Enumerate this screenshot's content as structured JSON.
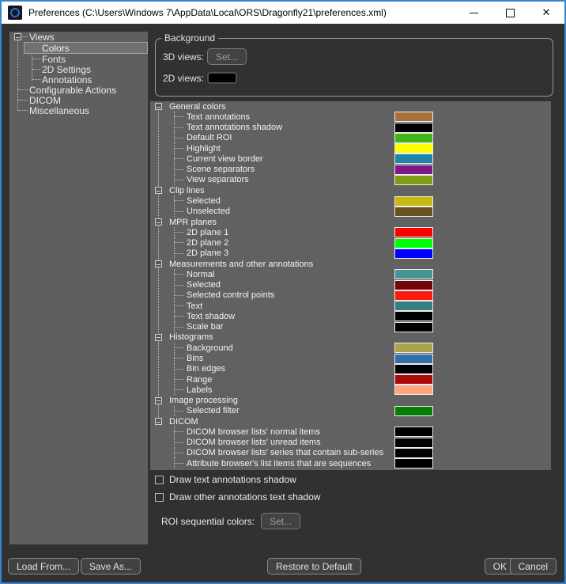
{
  "window": {
    "title": "Preferences (C:\\Users\\Windows 7\\AppData\\Local\\ORS\\Dragonfly21\\preferences.xml)",
    "border_color": "#3b84ce",
    "titlebar_bg": "#ffffff",
    "panel_bg": "#616161",
    "background_color": "#2f3133"
  },
  "sidebar": {
    "items": [
      {
        "label": "Views",
        "level": 0,
        "expander": true,
        "selected": false
      },
      {
        "label": "Colors",
        "level": 1,
        "expander": false,
        "selected": true
      },
      {
        "label": "Fonts",
        "level": 1,
        "expander": false,
        "selected": false
      },
      {
        "label": "2D Settings",
        "level": 1,
        "expander": false,
        "selected": false
      },
      {
        "label": "Annotations",
        "level": 1,
        "expander": false,
        "selected": false
      },
      {
        "label": "Configurable Actions",
        "level": 0,
        "expander": false,
        "selected": false
      },
      {
        "label": "DICOM",
        "level": 0,
        "expander": false,
        "selected": false
      },
      {
        "label": "Miscellaneous",
        "level": 0,
        "expander": false,
        "selected": false
      }
    ]
  },
  "background_group": {
    "title": "Background",
    "rows": [
      {
        "label": "3D views:",
        "button_label": "Set..."
      },
      {
        "label": "2D views:",
        "swatch_color": "#000000"
      }
    ]
  },
  "color_tree": {
    "groups": [
      {
        "label": "General colors",
        "children": [
          {
            "label": "Text annotations",
            "color": "#a8713c"
          },
          {
            "label": "Text annotations shadow",
            "color": "#000000"
          },
          {
            "label": "Default ROI",
            "color": "#3eb514"
          },
          {
            "label": "Highlight",
            "color": "#ffff00"
          },
          {
            "label": "Current view border",
            "color": "#1e86a8"
          },
          {
            "label": "Scene separators",
            "color": "#7d1a87"
          },
          {
            "label": "View separators",
            "color": "#7f9d12"
          }
        ]
      },
      {
        "label": "Clip lines",
        "children": [
          {
            "label": "Selected",
            "color": "#c9b90b"
          },
          {
            "label": "Unselected",
            "color": "#655220"
          }
        ]
      },
      {
        "label": "MPR planes",
        "children": [
          {
            "label": "2D plane 1",
            "color": "#ff0000"
          },
          {
            "label": "2D plane 2",
            "color": "#00ff00"
          },
          {
            "label": "2D plane 3",
            "color": "#0000ff"
          }
        ]
      },
      {
        "label": "Measurements and other annotations",
        "children": [
          {
            "label": "Normal",
            "color": "#469492"
          },
          {
            "label": "Selected",
            "color": "#730505"
          },
          {
            "label": "Selected control points",
            "color": "#fc190d"
          },
          {
            "label": "Text",
            "color": "#357f80"
          },
          {
            "label": "Text shadow",
            "color": "#000000"
          },
          {
            "label": "Scale bar",
            "color": "#000000"
          }
        ]
      },
      {
        "label": "Histograms",
        "children": [
          {
            "label": "Background",
            "color": "#aba44a"
          },
          {
            "label": "Bins",
            "color": "#346ea8"
          },
          {
            "label": "Bin edges",
            "color": "#000000"
          },
          {
            "label": "Range",
            "color": "#aa0a0a"
          },
          {
            "label": "Labels",
            "color": "#fda57c"
          }
        ]
      },
      {
        "label": "Image processing",
        "children": [
          {
            "label": "Selected filter",
            "color": "#067d06"
          }
        ]
      },
      {
        "label": "DICOM",
        "children": [
          {
            "label": "DICOM browser lists' normal items",
            "color": "#000000"
          },
          {
            "label": "DICOM browser lists' unread items",
            "color": "#000000"
          },
          {
            "label": "DICOM browser lists' series that contain sub-series",
            "color": "#000000"
          },
          {
            "label": "Attribute browser's list items that are sequences",
            "color": "#000000"
          }
        ]
      }
    ]
  },
  "checkboxes": [
    {
      "label": "Draw text annotations shadow",
      "checked": false
    },
    {
      "label": "Draw other annotations text shadow",
      "checked": false
    }
  ],
  "roi": {
    "label": "ROI sequential colors:",
    "button_label": "Set..."
  },
  "footer": {
    "buttons": [
      "Load From...",
      "Save As...",
      "Restore to Default",
      "OK",
      "Cancel"
    ]
  }
}
